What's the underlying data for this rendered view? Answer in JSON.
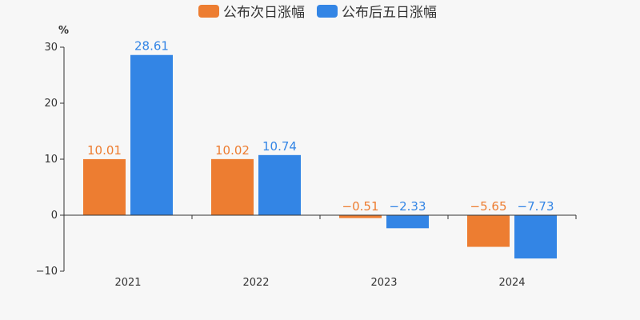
{
  "chart_data": {
    "type": "bar",
    "categories": [
      "2021",
      "2022",
      "2023",
      "2024"
    ],
    "series": [
      {
        "name": "公布次日涨幅",
        "values": [
          10.01,
          10.02,
          -0.51,
          -5.65
        ],
        "labels": [
          "10.01",
          "10.02",
          "−0.51",
          "−5.65"
        ],
        "color": "#ed7d31"
      },
      {
        "name": "公布后五日涨幅",
        "values": [
          28.61,
          10.74,
          -2.33,
          -7.73
        ],
        "labels": [
          "28.61",
          "10.74",
          "−2.33",
          "−7.73"
        ],
        "color": "#3385e5"
      }
    ],
    "yunit": "%",
    "ylim": [
      -10,
      30
    ],
    "yticks": [
      30,
      20,
      10,
      0,
      -10
    ],
    "ytick_labels": [
      "30",
      "20",
      "10",
      "0",
      "−10"
    ],
    "legend_position": "top-center",
    "grid": false
  }
}
